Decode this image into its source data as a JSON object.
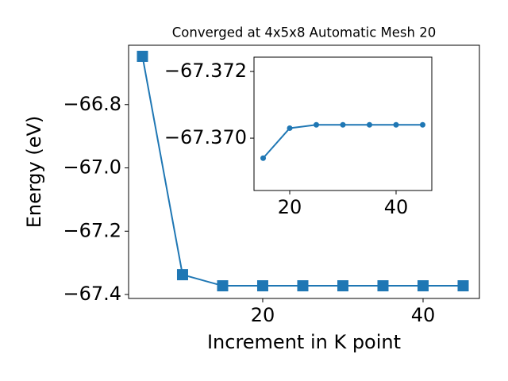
{
  "chart_data": [
    {
      "type": "line",
      "title": "Converged at 4x5x8 Automatic Mesh 20",
      "x_label": "Increment in K point",
      "y_label": "Energy (eV)",
      "x": [
        5,
        10,
        15,
        20,
        25,
        30,
        35,
        40,
        45
      ],
      "series": [
        {
          "color": "#1f77b4",
          "marker": "square",
          "values": [
            -66.6475,
            -67.3375,
            -67.3725,
            -67.3725,
            -67.3725,
            -67.3725,
            -67.3725,
            -67.3725,
            -67.3725
          ]
        }
      ],
      "xlim": [
        3.27,
        47.03
      ],
      "xticks": [
        20,
        40
      ],
      "ylim": [
        -67.4125,
        -66.6125
      ],
      "yticks": [
        {
          "value": -67.4,
          "label": "−67.4"
        },
        {
          "value": -67.2,
          "label": "−67.2"
        },
        {
          "value": -67.0,
          "label": "−67.0"
        },
        {
          "value": -66.8,
          "label": "−66.8"
        }
      ]
    },
    {
      "type": "line",
      "x": [
        15,
        20,
        25,
        30,
        35,
        40,
        45
      ],
      "series": [
        {
          "color": "#1f77b4",
          "marker": "circle",
          "values": [
            -67.3694,
            -67.3703,
            -67.3704,
            -67.3704,
            -67.3704,
            -67.3704,
            -67.3704
          ]
        }
      ],
      "xlim": [
        13.28,
        46.72
      ],
      "xticks": [
        20,
        40
      ],
      "ylim": [
        -67.36843,
        -67.37243
      ],
      "yticks": [
        {
          "value": -67.37,
          "label": "−67.370"
        },
        {
          "value": -67.372,
          "label": "−67.372"
        }
      ]
    }
  ]
}
